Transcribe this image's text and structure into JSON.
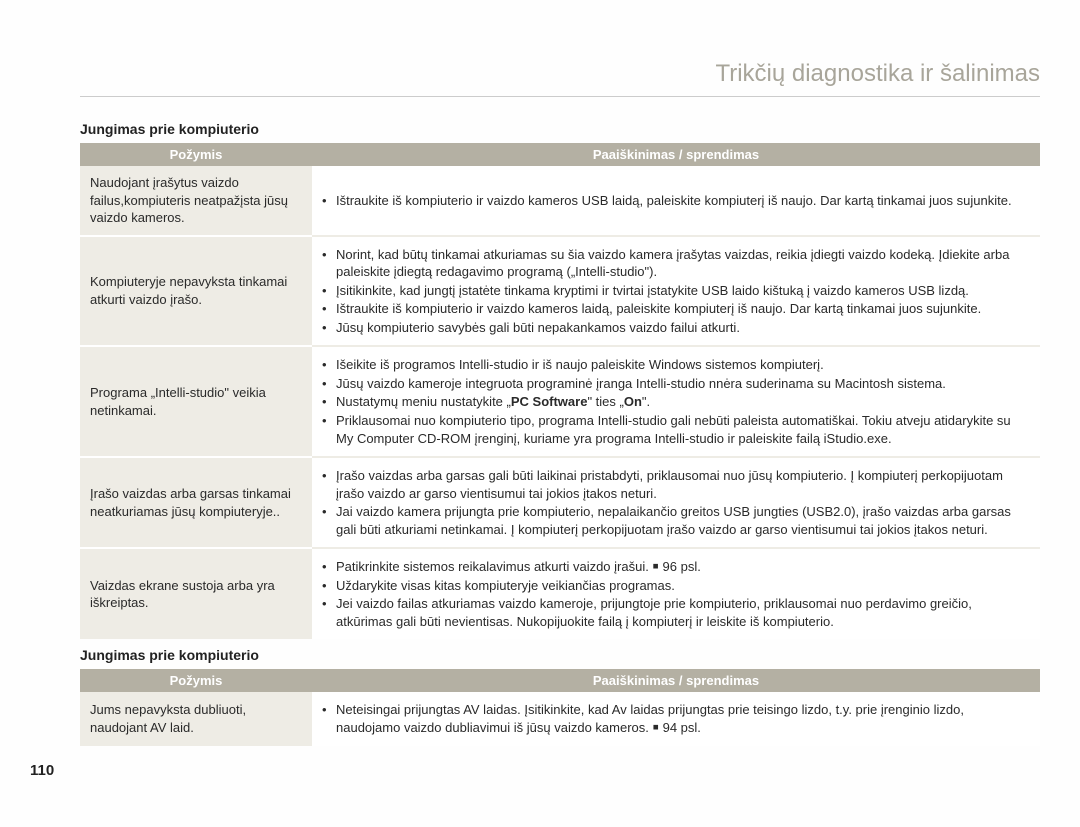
{
  "page_number": "110",
  "chapter_title": "Trikčių diagnostika ir šalinimas",
  "section1": {
    "title": "Jungimas prie kompiuterio",
    "header_symptom": "Požymis",
    "header_explain": "Paaiškinimas / sprendimas",
    "rows": [
      {
        "symptom": "Naudojant įrašytus vaizdo failus,kompiuteris neatpažįsta jūsų vaizdo kameros.",
        "bullets": [
          "Ištraukite iš kompiuterio ir vaizdo kameros USB laidą, paleiskite kompiuterį iš naujo. Dar kartą tinkamai juos sujunkite."
        ]
      },
      {
        "symptom": "Kompiuteryje nepavyksta tinkamai atkurti vaizdo įrašo.",
        "bullets": [
          "Norint, kad būtų tinkamai atkuriamas su šia vaizdo kamera įrašytas vaizdas, reikia įdiegti vaizdo kodeką. Įdiekite arba paleiskite įdiegtą redagavimo programą („Intelli-studio\").",
          "Įsitikinkite, kad jungtį įstatėte tinkama kryptimi ir tvirtai įstatykite USB laido kištuką į vaizdo kameros USB lizdą.",
          "Ištraukite iš kompiuterio ir vaizdo kameros laidą, paleiskite kompiuterį iš naujo. Dar kartą tinkamai juos sujunkite.",
          "Jūsų kompiuterio savybės gali būti nepakankamos vaizdo failui atkurti."
        ]
      },
      {
        "symptom": "Programa „Intelli-studio\" veikia netinkamai.",
        "bullets": [
          "Išeikite iš programos Intelli-studio ir iš naujo paleiskite Windows sistemos kompiuterį.",
          "Jūsų vaizdo kameroje integruota programinė įranga Intelli-studio nnėra suderinama su Macintosh sistema.",
          "Nustatymų meniu nustatykite „<strong>PC Software</strong>\" ties „<strong>On</strong>\".",
          "Priklausomai nuo kompiuterio tipo, programa Intelli-studio gali nebūti paleista automatiškai. Tokiu atveju atidarykite su My Computer CD-ROM įrenginį, kuriame yra programa Intelli-studio ir paleiskite failą iStudio.exe."
        ]
      },
      {
        "symptom": "Įrašo vaizdas arba garsas tinkamai neatkuriamas jūsų kompiuteryje..",
        "bullets": [
          "Įrašo vaizdas arba garsas gali būti laikinai pristabdyti, priklausomai nuo jūsų kompiuterio. Į kompiuterį perkopijuotam įrašo vaizdo ar garso vientisumui tai jokios įtakos neturi.",
          "Jai vaizdo kamera prijungta prie kompiuterio, nepalaikančio greitos USB jungties (USB2.0), įrašo vaizdas arba garsas gali būti atkuriami  netinkamai. Į kompiuterį perkopijuotam įrašo vaizdo ar garso vientisumui tai jokios įtakos neturi."
        ]
      },
      {
        "symptom": "Vaizdas ekrane sustoja arba yra iškreiptas.",
        "bullets": [
          "Patikrinkite sistemos reikalavimus atkurti vaizdo įrašui. ￭ 96 psl.",
          "Uždarykite visas kitas kompiuteryje veikiančias programas.",
          "Jei vaizdo failas atkuriamas vaizdo kameroje, prijungtoje prie kompiuterio, priklausomai nuo perdavimo greičio, atkūrimas gali būti nevientisas. Nukopijuokite failą į kompiuterį ir leiskite iš kompiuterio."
        ]
      }
    ]
  },
  "section2": {
    "title": "Jungimas prie kompiuterio",
    "header_symptom": "Požymis",
    "header_explain": "Paaiškinimas / sprendimas",
    "rows": [
      {
        "symptom": "Jums nepavyksta dubliuoti, naudojant AV laid.",
        "bullets": [
          "Neteisingai prijungtas AV laidas. Įsitikinkite, kad Av laidas prijungtas prie teisingo lizdo, t.y. prie įrenginio lizdo, naudojamo vaizdo dubliavimui iš jūsų vaizdo kameros. ￭ 94 psl."
        ]
      }
    ]
  }
}
